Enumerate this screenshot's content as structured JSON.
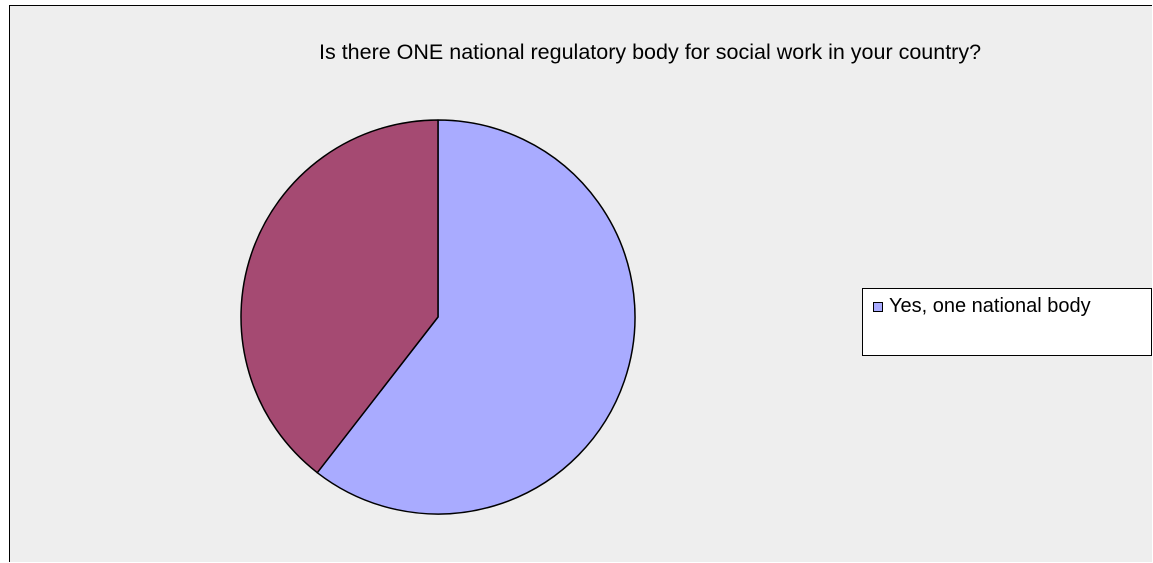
{
  "chart_data": {
    "type": "pie",
    "title": "Is there ONE national regulatory body for social work in your country?",
    "slices": [
      {
        "name": "Yes, one national body",
        "value": 60.5,
        "color": "#a9abff"
      },
      {
        "name": "",
        "value": 39.5,
        "color": "#a54a72"
      }
    ],
    "legend": {
      "placement": "right",
      "entries": [
        "Yes, one national body"
      ]
    }
  }
}
